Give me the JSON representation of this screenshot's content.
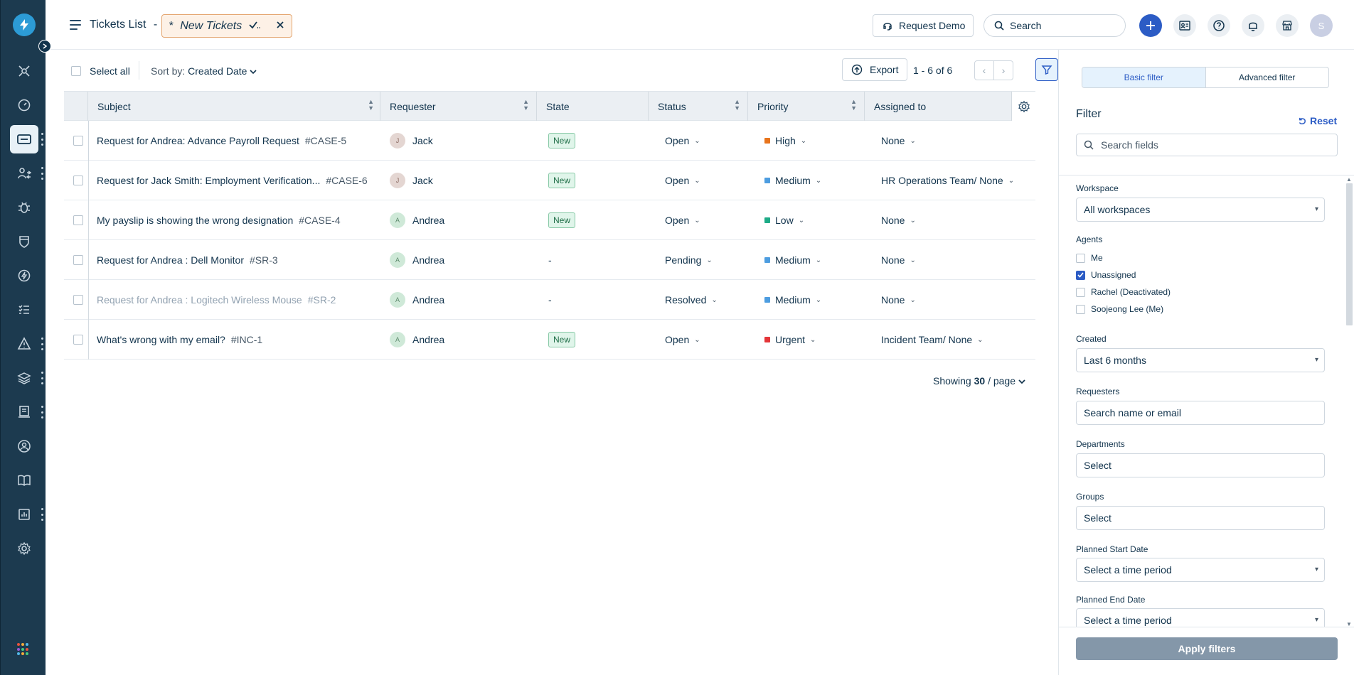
{
  "header": {
    "title": "Tickets List",
    "separator": "-",
    "view_chip": {
      "star": "*",
      "name": "New Tickets",
      "check": "✓̣",
      "close": "✕"
    },
    "request_demo": "Request Demo",
    "search_placeholder": "Search",
    "avatar_initial": "S"
  },
  "toolbar": {
    "select_all": "Select all",
    "sort_prefix": "Sort by:",
    "sort_value": "Created Date",
    "export": "Export",
    "pagination": "1 - 6 of 6",
    "prev": "‹",
    "next": "›"
  },
  "table": {
    "columns": [
      "Subject",
      "Requester",
      "State",
      "Status",
      "Priority",
      "Assigned to"
    ],
    "rows": [
      {
        "subject": "Request for Andrea: Advance Payroll Request",
        "id": "#CASE-5",
        "requester": "Jack",
        "req_initial": "J",
        "state": "New",
        "status": "Open",
        "priority": "High",
        "priority_color": "#e8741c",
        "assigned": "None"
      },
      {
        "subject": "Request for Jack Smith: Employment Verification...",
        "id": "#CASE-6",
        "requester": "Jack",
        "req_initial": "J",
        "state": "New",
        "status": "Open",
        "priority": "Medium",
        "priority_color": "#4d9de0",
        "assigned": "HR Operations Team/ None"
      },
      {
        "subject": "My payslip is showing the wrong designation",
        "id": "#CASE-4",
        "requester": "Andrea",
        "req_initial": "A",
        "state": "New",
        "status": "Open",
        "priority": "Low",
        "priority_color": "#1eab87",
        "assigned": "None"
      },
      {
        "subject": "Request for Andrea : Dell Monitor",
        "id": "#SR-3",
        "requester": "Andrea",
        "req_initial": "A",
        "state": "-",
        "status": "Pending",
        "priority": "Medium",
        "priority_color": "#4d9de0",
        "assigned": "None"
      },
      {
        "subject": "Request for Andrea : Logitech Wireless Mouse",
        "id": "#SR-2",
        "requester": "Andrea",
        "req_initial": "A",
        "state": "-",
        "status": "Resolved",
        "priority": "Medium",
        "priority_color": "#4d9de0",
        "assigned": "None"
      },
      {
        "subject": "What's wrong with my email?",
        "id": "#INC-1",
        "requester": "Andrea",
        "req_initial": "A",
        "state": "New",
        "status": "Open",
        "priority": "Urgent",
        "priority_color": "#e43538",
        "assigned": "Incident Team/ None"
      }
    ],
    "showing_prefix": "Showing",
    "showing_count": "30",
    "showing_suffix": "/ page"
  },
  "filter_panel": {
    "tab_basic": "Basic filter",
    "tab_advanced": "Advanced filter",
    "title": "Filter",
    "reset": "Reset",
    "search_fields_placeholder": "Search fields",
    "workspace_label": "Workspace",
    "workspace_value": "All workspaces",
    "agents_label": "Agents",
    "agents": [
      {
        "label": "Me",
        "checked": false
      },
      {
        "label": "Unassigned",
        "checked": true
      },
      {
        "label": "Rachel (Deactivated)",
        "checked": false
      },
      {
        "label": "Soojeong Lee (Me)",
        "checked": false
      }
    ],
    "created_label": "Created",
    "created_value": "Last 6 months",
    "requesters_label": "Requesters",
    "requesters_placeholder": "Search name or email",
    "departments_label": "Departments",
    "departments_value": "Select",
    "groups_label": "Groups",
    "groups_value": "Select",
    "planned_start_label": "Planned Start Date",
    "planned_start_value": "Select a time period",
    "planned_end_label": "Planned End Date",
    "planned_end_value": "Select a time period",
    "apply": "Apply filters"
  },
  "colors": {
    "accent": "#2c5cc5",
    "sidebar": "#1c3a4f",
    "chip_border": "#e4a670"
  }
}
